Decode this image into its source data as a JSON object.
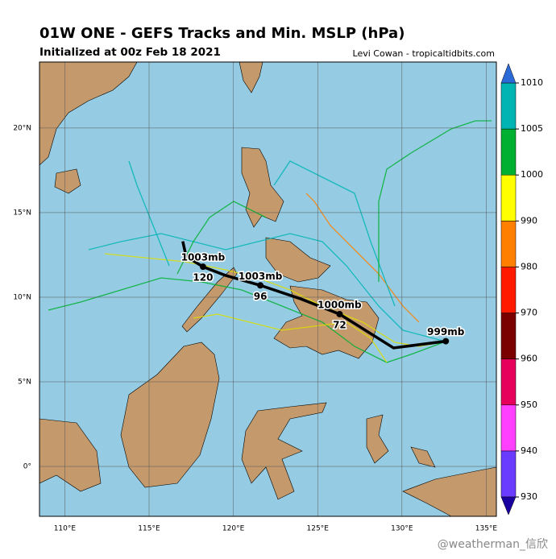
{
  "header": {
    "title": "01W ONE - GEFS Tracks and Min. MSLP (hPa)",
    "subtitle": "Initialized at 00z Feb 18 2021",
    "credit": "Levi Cowan - tropicaltidbits.com"
  },
  "map": {
    "lon_range": [
      108.5,
      135.6
    ],
    "lat_range": [
      -2.95,
      23.9
    ],
    "xticks": [
      {
        "value": 110,
        "label": "110°E"
      },
      {
        "value": 115,
        "label": "115°E"
      },
      {
        "value": 120,
        "label": "120°E"
      },
      {
        "value": 125,
        "label": "125°E"
      },
      {
        "value": 130,
        "label": "130°E"
      },
      {
        "value": 135,
        "label": "135°E"
      }
    ],
    "yticks": [
      {
        "value": 0,
        "label": "0°"
      },
      {
        "value": 5,
        "label": "5°N"
      },
      {
        "value": 10,
        "label": "10°N"
      },
      {
        "value": 15,
        "label": "15°N"
      },
      {
        "value": 20,
        "label": "20°N"
      }
    ],
    "mean_track": [
      {
        "lon": 132.6,
        "lat": 7.4,
        "pressure": 999,
        "pressure_label": "999mb"
      },
      {
        "lon": 129.5,
        "lat": 7.0
      },
      {
        "lon": 126.3,
        "lat": 9.0,
        "pressure": 1000,
        "pressure_label": "1000mb",
        "hour": 72
      },
      {
        "lon": 124.0,
        "lat": 9.9
      },
      {
        "lon": 121.6,
        "lat": 10.7,
        "pressure": 1003,
        "pressure_label": "1003mb",
        "hour": 96
      },
      {
        "lon": 119.5,
        "lat": 11.3
      },
      {
        "lon": 118.2,
        "lat": 11.8,
        "pressure": 1003,
        "pressure_label": "1003mb",
        "hour": 120
      },
      {
        "lon": 117.2,
        "lat": 12.4
      },
      {
        "lon": 117.0,
        "lat": 13.3
      }
    ]
  },
  "colorbar": {
    "levels": [
      930,
      940,
      950,
      960,
      970,
      980,
      990,
      1000,
      1005,
      1010
    ],
    "colors": [
      "#6a3cff",
      "#ff40ff",
      "#e6005c",
      "#7a0000",
      "#ff1a00",
      "#ff8000",
      "#ffff00",
      "#00b030",
      "#00b4b4"
    ],
    "under_color": "#1a00a0",
    "over_color": "#2c6ad8"
  },
  "watermark": "@weatherman_信欣"
}
